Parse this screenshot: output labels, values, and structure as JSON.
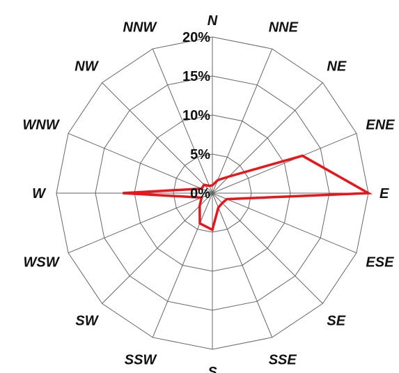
{
  "chart_data": {
    "type": "radar",
    "directions": [
      "N",
      "NNE",
      "NE",
      "ENE",
      "E",
      "ESE",
      "SE",
      "SSE",
      "S",
      "SSW",
      "SW",
      "WSW",
      "W",
      "WNW",
      "NW",
      "NNW"
    ],
    "radial_ticks": [
      "0%",
      "5%",
      "10%",
      "15%",
      "20%"
    ],
    "radial_range": [
      0,
      20
    ],
    "series": [
      {
        "values": [
          1,
          1.8,
          3,
          12.5,
          20,
          2,
          1.8,
          2,
          4.7,
          4.2,
          2.3,
          1.5,
          11.5,
          1.5,
          1.5,
          1
        ],
        "color": "#e8151b"
      }
    ],
    "grid": true
  }
}
